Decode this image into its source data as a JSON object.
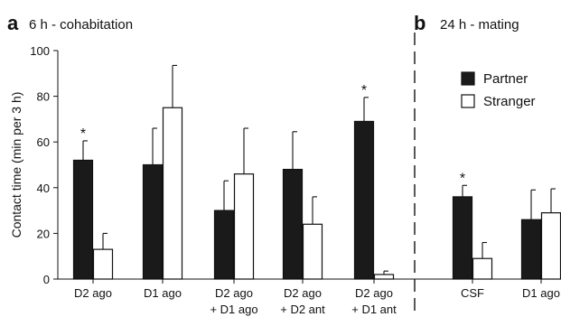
{
  "chart_data": {
    "type": "bar",
    "panels": [
      {
        "letter": "a",
        "title": "6 h - cohabitation",
        "categories": [
          [
            "D2 ago"
          ],
          [
            "D1 ago"
          ],
          [
            "D2 ago",
            "+ D1 ago"
          ],
          [
            "D2 ago",
            "+ D2 ant"
          ],
          [
            "D2 ago",
            "+ D1 ant"
          ]
        ],
        "series": [
          {
            "name": "Partner",
            "values": [
              52,
              50,
              30,
              48,
              69
            ],
            "errors": [
              8.5,
              16,
              13,
              16.5,
              10.5
            ],
            "significant": [
              true,
              false,
              false,
              false,
              true
            ]
          },
          {
            "name": "Stranger",
            "values": [
              13,
              75,
              46,
              24,
              2
            ],
            "errors": [
              7,
              18.5,
              20,
              12,
              1.5
            ],
            "significant": [
              false,
              false,
              false,
              false,
              false
            ]
          }
        ]
      },
      {
        "letter": "b",
        "title": "24 h - mating",
        "categories": [
          [
            "CSF"
          ],
          [
            "D1 ago"
          ]
        ],
        "series": [
          {
            "name": "Partner",
            "values": [
              36,
              26
            ],
            "errors": [
              5,
              13
            ],
            "significant": [
              true,
              false
            ]
          },
          {
            "name": "Stranger",
            "values": [
              9,
              29
            ],
            "errors": [
              7,
              10.5
            ],
            "significant": [
              false,
              false
            ]
          }
        ]
      }
    ],
    "ylabel": "Contact time (min per 3 h)",
    "ylim": [
      0,
      100
    ],
    "yticks": [
      0,
      20,
      40,
      60,
      80,
      100
    ],
    "legend": {
      "placement": "top-right",
      "entries": [
        {
          "name": "Partner",
          "color": "#1a1a1a"
        },
        {
          "name": "Stranger",
          "color": "#ffffff"
        }
      ]
    },
    "significance_marker": "*",
    "colors": {
      "partner": "#1a1a1a",
      "stranger": "#ffffff",
      "stroke": "#111111"
    }
  }
}
